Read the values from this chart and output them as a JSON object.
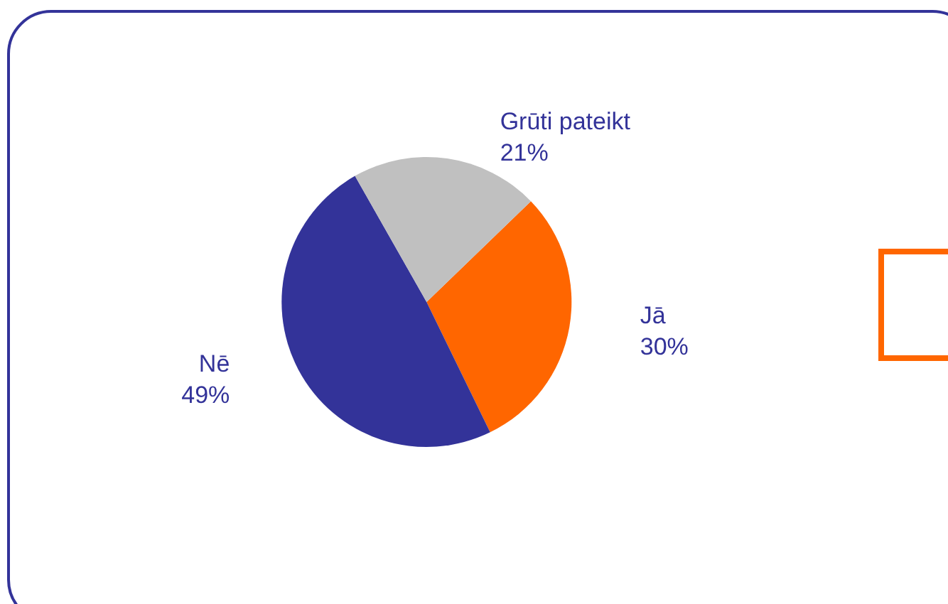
{
  "chart_data": {
    "type": "pie",
    "categories": [
      "Jā",
      "Nē",
      "Grūti pateikt"
    ],
    "values": [
      30,
      49,
      21
    ],
    "value_labels": [
      "30%",
      "49%",
      "21%"
    ],
    "colors": [
      "#ff6600",
      "#333399",
      "#c0c0c0"
    ],
    "legend": false
  }
}
